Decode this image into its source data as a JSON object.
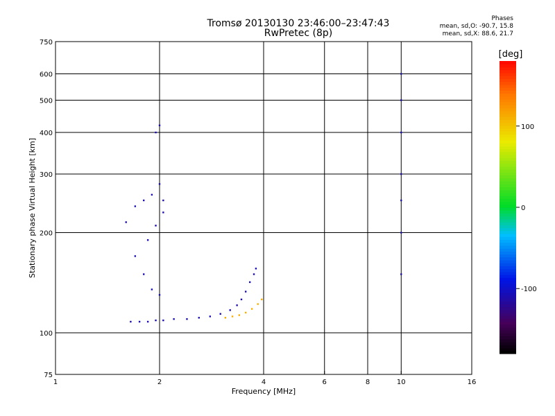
{
  "header": {
    "title_line1": "Tromsø 20130130 23:46:00–23:47:43",
    "title_line2": "RwPretec (8p)"
  },
  "stats": {
    "heading": "Phases",
    "line_o": "mean, sd,O: -90.7, 15.8",
    "line_x": "mean, sd,X:  88.6, 21.7"
  },
  "chart_data": {
    "type": "scatter",
    "xlabel": "Frequency [MHz]",
    "ylabel": "Stationary phase Virtual Height [km]",
    "xscale": "log",
    "yscale": "log",
    "xlim": [
      1,
      16
    ],
    "ylim": [
      75,
      750
    ],
    "xticks": [
      1,
      2,
      4,
      6,
      8,
      10,
      16
    ],
    "yticks": [
      75,
      100,
      200,
      300,
      400,
      500,
      600,
      750
    ],
    "grid_x": [
      2,
      4,
      6,
      8,
      10
    ],
    "grid_y": [
      100,
      200,
      300,
      400,
      500,
      600
    ],
    "colorbar": {
      "label": "[deg]",
      "range": [
        -180,
        180
      ],
      "ticks": [
        -100,
        0,
        100
      ]
    },
    "traces": [
      {
        "note": "O-mode lower trace",
        "color_deg": -110,
        "points": [
          [
            1.65,
            108
          ],
          [
            1.75,
            108
          ],
          [
            1.85,
            108
          ],
          [
            1.95,
            109
          ],
          [
            2.05,
            109
          ],
          [
            2.2,
            110
          ],
          [
            2.4,
            110
          ],
          [
            2.6,
            111
          ],
          [
            2.8,
            112
          ],
          [
            3.0,
            114
          ],
          [
            3.2,
            117
          ],
          [
            3.35,
            121
          ],
          [
            3.45,
            126
          ],
          [
            3.55,
            133
          ],
          [
            3.65,
            142
          ],
          [
            3.75,
            150
          ],
          [
            3.8,
            156
          ]
        ]
      },
      {
        "note": "X-mode lower trace",
        "color_deg": 110,
        "points": [
          [
            3.1,
            111
          ],
          [
            3.25,
            112
          ],
          [
            3.4,
            113
          ],
          [
            3.55,
            115
          ],
          [
            3.7,
            118
          ],
          [
            3.85,
            122
          ],
          [
            3.95,
            126
          ]
        ]
      },
      {
        "note": "F region spread",
        "color_deg": -110,
        "points": [
          [
            1.6,
            215
          ],
          [
            1.7,
            240
          ],
          [
            1.8,
            250
          ],
          [
            1.9,
            260
          ],
          [
            2.0,
            280
          ],
          [
            2.05,
            250
          ],
          [
            1.95,
            400
          ],
          [
            2.0,
            420
          ],
          [
            1.7,
            170
          ],
          [
            1.8,
            150
          ],
          [
            1.9,
            135
          ],
          [
            2.0,
            130
          ],
          [
            1.85,
            190
          ],
          [
            1.95,
            210
          ],
          [
            2.05,
            230
          ]
        ]
      },
      {
        "note": "Near 10 MHz vertical line",
        "color_deg": -110,
        "points": [
          [
            10,
            600
          ],
          [
            10,
            500
          ],
          [
            10,
            400
          ],
          [
            10,
            300
          ],
          [
            10,
            250
          ],
          [
            10,
            200
          ],
          [
            10,
            150
          ]
        ]
      }
    ]
  }
}
